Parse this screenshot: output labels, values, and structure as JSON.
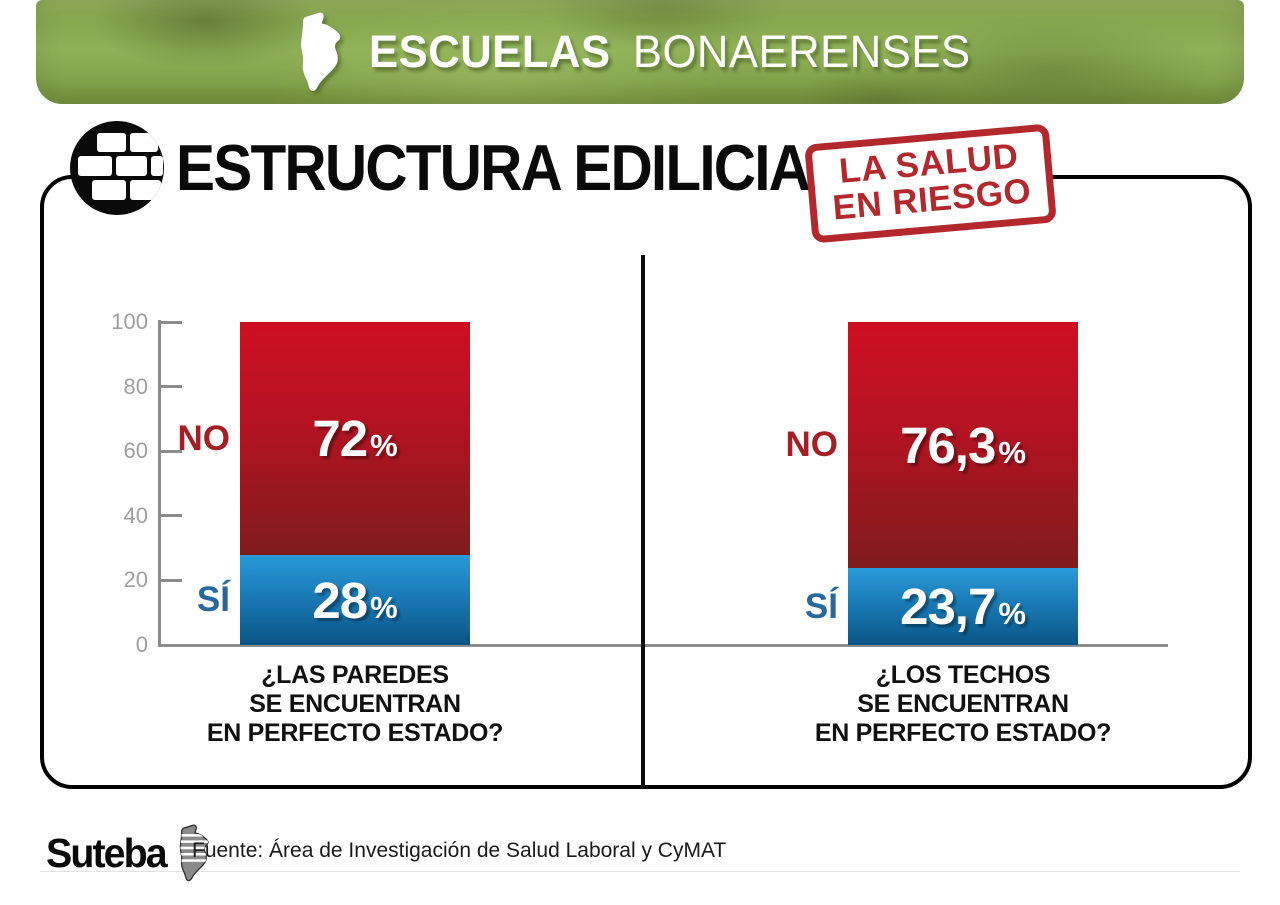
{
  "banner": {
    "title_bold": "ESCUELAS",
    "title_light": "BONAERENSES",
    "map_icon": "buenos-aires-province-map-icon",
    "color": "#8aab52"
  },
  "header": {
    "icon": "brick-wall-icon",
    "title": "ESTRUCTURA EDILICIA",
    "stamp": {
      "line1": "LA SALUD",
      "line2": "EN RIESGO",
      "color": "#b3282d"
    }
  },
  "chart_data": {
    "type": "bar",
    "subtype": "stacked-percentage-columns",
    "title": "Estructura edilicia - escuelas bonaerenses",
    "xlabel": "",
    "ylabel": "",
    "ylim": [
      0,
      100
    ],
    "yticks": [
      "100",
      "80",
      "60",
      "40",
      "20",
      "0"
    ],
    "grid": false,
    "legend_position": "left-of-bars",
    "percent_sign": "%",
    "charts": [
      {
        "question_lines": [
          "¿LAS PAREDES",
          "SE ENCUENTRAN",
          "EN PERFECTO ESTADO?"
        ],
        "series": [
          {
            "name": "NO",
            "value": 72,
            "color_top": "#cd0f21",
            "color_bottom": "#7f1c1c"
          },
          {
            "name": "SÍ",
            "value": 28,
            "color_top": "#2a9ad9",
            "color_bottom": "#0a5586"
          }
        ],
        "display": {
          "no": "72",
          "si": "28"
        },
        "labels": {
          "no": "NO",
          "si": "SÍ"
        }
      },
      {
        "question_lines": [
          "¿LOS TECHOS",
          "SE ENCUENTRAN",
          "EN PERFECTO ESTADO?"
        ],
        "series": [
          {
            "name": "NO",
            "value": 76.3,
            "color_top": "#cd0f21",
            "color_bottom": "#7f1c1c"
          },
          {
            "name": "SÍ",
            "value": 23.7,
            "color_top": "#2a9ad9",
            "color_bottom": "#0a5586"
          }
        ],
        "display": {
          "no": "76,3",
          "si": "23,7"
        },
        "labels": {
          "no": "NO",
          "si": "SÍ"
        }
      }
    ]
  },
  "footer": {
    "logo_text": "Suteba",
    "logo_icon": "suteba-map-icon",
    "source": "Fuente: Área de Investigación de Salud Laboral y CyMAT"
  },
  "colors": {
    "banner_green": "#8aab52",
    "bar_red_top": "#cd0f21",
    "bar_red_bottom": "#7f1c1c",
    "bar_blue_top": "#2a9ad9",
    "bar_blue_bottom": "#0a5586",
    "stamp_red": "#b3282d",
    "no_label_red": "#a51e25",
    "si_label_blue": "#29689f",
    "axis_gray": "#8c8c8c"
  }
}
